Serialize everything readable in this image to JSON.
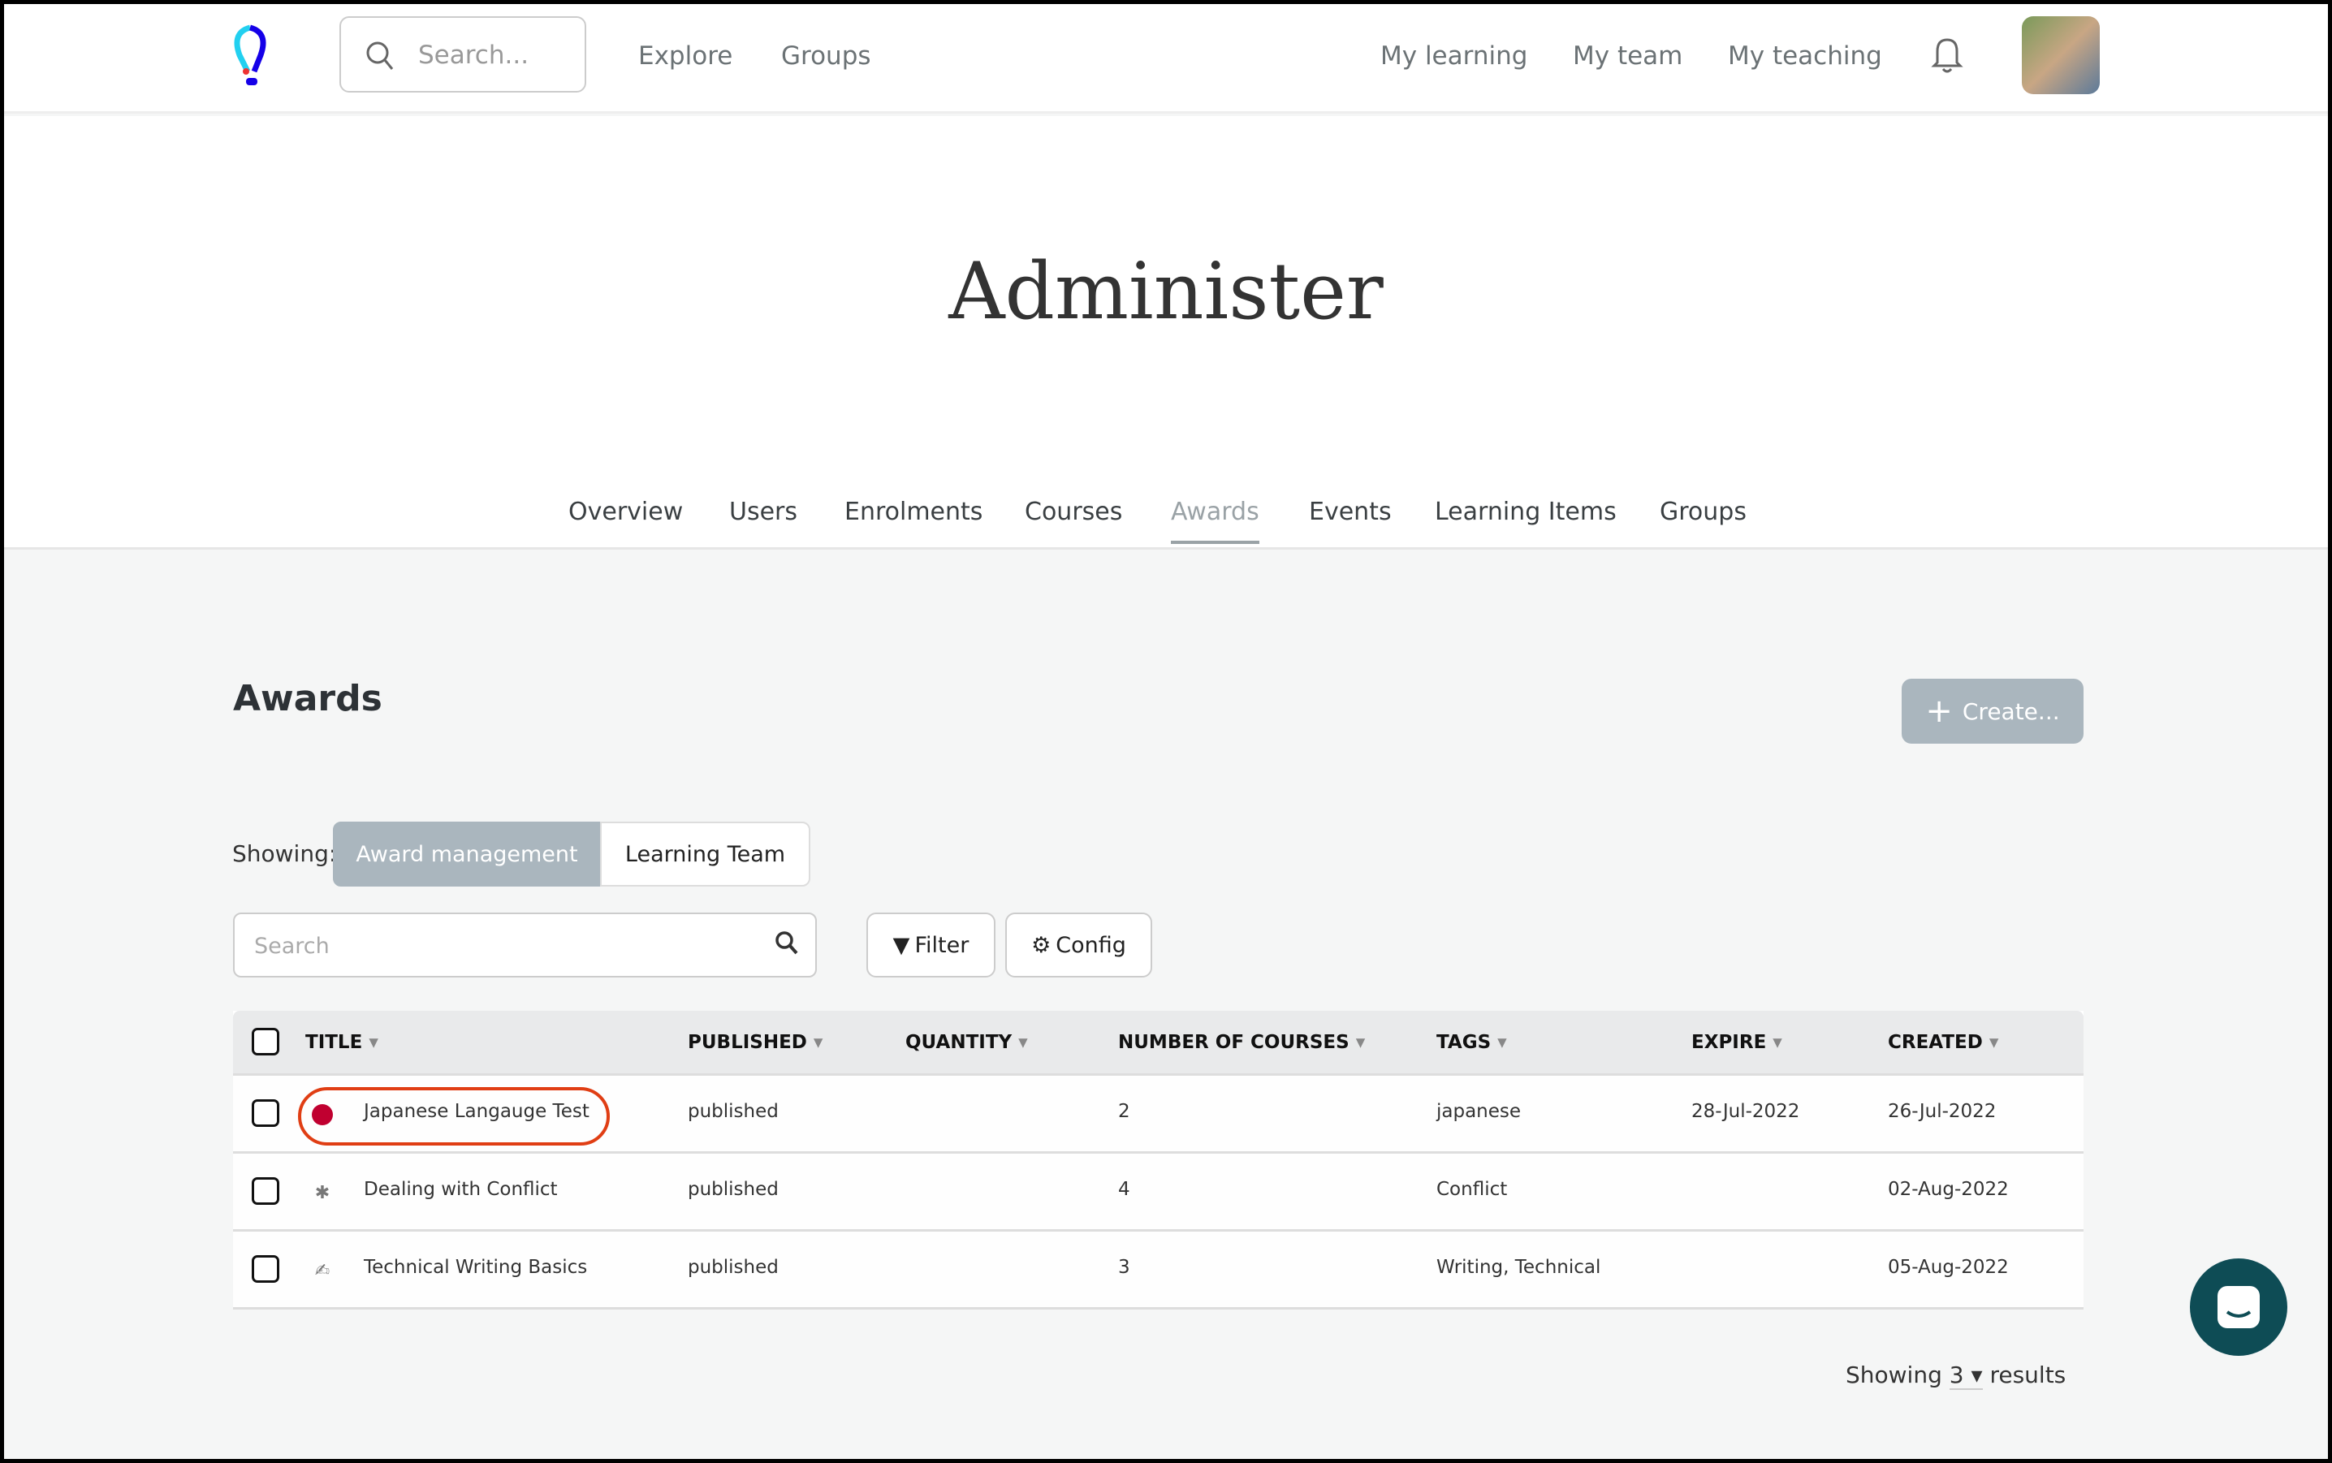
{
  "header": {
    "search_placeholder": "Search...",
    "nav_left": [
      "Explore",
      "Groups"
    ],
    "nav_right": [
      "My learning",
      "My team",
      "My teaching"
    ],
    "icons": [
      "logo-bulb",
      "search-icon",
      "bell-icon",
      "avatar"
    ]
  },
  "page": {
    "title": "Administer"
  },
  "tabs": [
    {
      "label": "Overview"
    },
    {
      "label": "Users"
    },
    {
      "label": "Enrolments"
    },
    {
      "label": "Courses"
    },
    {
      "label": "Awards",
      "active": true
    },
    {
      "label": "Events"
    },
    {
      "label": "Learning Items"
    },
    {
      "label": "Groups"
    }
  ],
  "awards": {
    "heading": "Awards",
    "create_label": "Create...",
    "showing_label": "Showing:",
    "toggle": [
      "Award management",
      "Learning Team"
    ],
    "search_placeholder": "Search",
    "filter_label": "Filter",
    "config_label": "Config"
  },
  "table": {
    "columns": [
      "TITLE",
      "PUBLISHED",
      "QUANTITY",
      "NUMBER OF COURSES",
      "TAGS",
      "EXPIRE",
      "CREATED"
    ],
    "rows": [
      {
        "title": "Japanese Langauge Test",
        "published": "published",
        "quantity": "",
        "courses": "2",
        "tags": "japanese",
        "expire": "28-Jul-2022",
        "created": "26-Jul-2022",
        "highlighted": true
      },
      {
        "title": "Dealing with Conflict",
        "published": "published",
        "quantity": "",
        "courses": "4",
        "tags": "Conflict",
        "expire": "",
        "created": "02-Aug-2022"
      },
      {
        "title": "Technical Writing Basics",
        "published": "published",
        "quantity": "",
        "courses": "3",
        "tags": "Writing, Technical",
        "expire": "",
        "created": "05-Aug-2022"
      }
    ]
  },
  "footer": {
    "showing_prefix": "Showing",
    "count": "3",
    "suffix": "results"
  },
  "colors": {
    "accent": "#aab6be",
    "highlight": "#e03e14",
    "chat": "#0e4c55"
  }
}
